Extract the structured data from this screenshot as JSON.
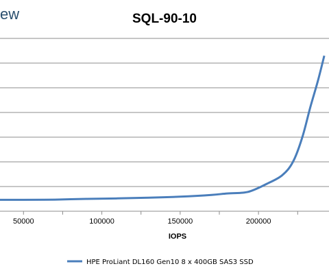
{
  "logo_text": "ew",
  "chart_data": {
    "type": "line",
    "title": "SQL-90-10",
    "xlabel": "IOPS",
    "ylabel": "",
    "xlim": [
      35000,
      245000
    ],
    "ylim": [
      0,
      7
    ],
    "x_ticks": [
      50000,
      100000,
      150000,
      200000
    ],
    "x_tick_labels": [
      "50000",
      "100000",
      "150000",
      "200000"
    ],
    "grid": "horizontal",
    "legend_position": "bottom",
    "series": [
      {
        "name": "HPE ProLiant DL160 Gen10 8 x 400GB SAS3 SSD",
        "color": "#4a7ebb",
        "points": [
          [
            35000,
            0.46
          ],
          [
            50000,
            0.46
          ],
          [
            70000,
            0.47
          ],
          [
            90000,
            0.5
          ],
          [
            110000,
            0.52
          ],
          [
            130000,
            0.55
          ],
          [
            150000,
            0.59
          ],
          [
            170000,
            0.66
          ],
          [
            180000,
            0.72
          ],
          [
            190000,
            0.75
          ],
          [
            196000,
            0.84
          ],
          [
            205000,
            1.1
          ],
          [
            215000,
            1.45
          ],
          [
            222000,
            2.0
          ],
          [
            228000,
            3.0
          ],
          [
            233000,
            4.2
          ],
          [
            238000,
            5.3
          ],
          [
            242000,
            6.3
          ]
        ]
      }
    ]
  }
}
